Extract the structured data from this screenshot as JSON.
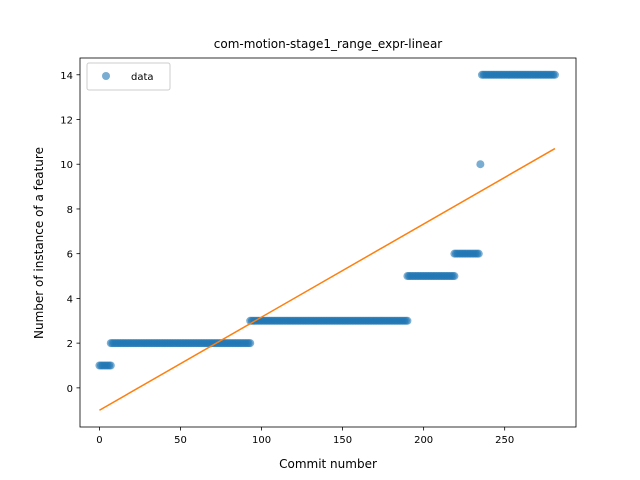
{
  "chart_data": {
    "type": "scatter",
    "title": "com-motion-stage1_range_expr-linear",
    "xlabel": "Commit number",
    "ylabel": "Number of instance of a feature",
    "xlim": [
      -12,
      294
    ],
    "ylim": [
      -1.75,
      14.75
    ],
    "xticks": [
      0,
      50,
      100,
      150,
      200,
      250
    ],
    "yticks": [
      0,
      2,
      4,
      6,
      8,
      10,
      12,
      14
    ],
    "grid": false,
    "legend_position": "top-left",
    "series": [
      {
        "name": "data",
        "kind": "points",
        "color": "#1f77b4",
        "segments": [
          {
            "x_start": 0,
            "x_end": 7,
            "y": 1
          },
          {
            "x_start": 7,
            "x_end": 93,
            "y": 2
          },
          {
            "x_start": 93,
            "x_end": 190,
            "y": 3
          },
          {
            "x_start": 190,
            "x_end": 219,
            "y": 5
          },
          {
            "x_start": 219,
            "x_end": 234,
            "y": 6
          },
          {
            "x_start": 235,
            "x_end": 235,
            "y": 10
          },
          {
            "x_start": 236,
            "x_end": 281,
            "y": 14
          }
        ]
      },
      {
        "kind": "line",
        "color": "#ff7f0e",
        "x": [
          0,
          281
        ],
        "y": [
          -1.0,
          10.7
        ]
      }
    ]
  }
}
